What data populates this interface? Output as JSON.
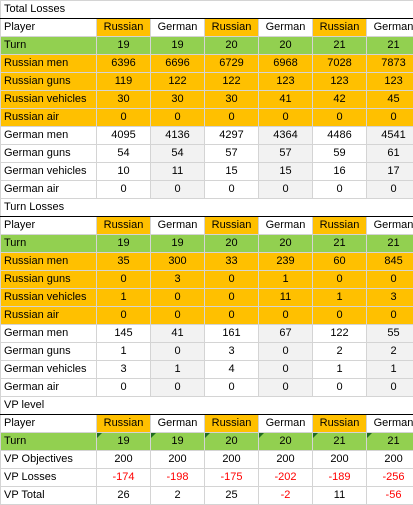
{
  "total_losses": {
    "title": "Total Losses",
    "player_label": "Player",
    "players": [
      "Russian",
      "German",
      "Russian",
      "German",
      "Russian",
      "German"
    ],
    "turn": {
      "label": "Turn",
      "values": [
        "19",
        "19",
        "20",
        "20",
        "21",
        "21"
      ]
    },
    "russian_rows": [
      {
        "label": "Russian men",
        "values": [
          "6396",
          "6696",
          "6729",
          "6968",
          "7028",
          "7873"
        ]
      },
      {
        "label": "Russian guns",
        "values": [
          "119",
          "122",
          "122",
          "123",
          "123",
          "123"
        ]
      },
      {
        "label": "Russian vehicles",
        "values": [
          "30",
          "30",
          "30",
          "41",
          "42",
          "45"
        ]
      },
      {
        "label": "Russian air",
        "values": [
          "0",
          "0",
          "0",
          "0",
          "0",
          "0"
        ]
      }
    ],
    "german_rows": [
      {
        "label": "German men",
        "values": [
          "4095",
          "4136",
          "4297",
          "4364",
          "4486",
          "4541"
        ]
      },
      {
        "label": "German guns",
        "values": [
          "54",
          "54",
          "57",
          "57",
          "59",
          "61"
        ]
      },
      {
        "label": "German vehicles",
        "values": [
          "10",
          "11",
          "15",
          "15",
          "16",
          "17"
        ]
      },
      {
        "label": "German air",
        "values": [
          "0",
          "0",
          "0",
          "0",
          "0",
          "0"
        ]
      }
    ]
  },
  "turn_losses": {
    "title": "Turn Losses",
    "player_label": "Player",
    "players": [
      "Russian",
      "German",
      "Russian",
      "German",
      "Russian",
      "German"
    ],
    "turn": {
      "label": "Turn",
      "values": [
        "19",
        "19",
        "20",
        "20",
        "21",
        "21"
      ]
    },
    "russian_rows": [
      {
        "label": "Russian men",
        "values": [
          "35",
          "300",
          "33",
          "239",
          "60",
          "845"
        ]
      },
      {
        "label": "Russian guns",
        "values": [
          "0",
          "3",
          "0",
          "1",
          "0",
          "0"
        ]
      },
      {
        "label": "Russian vehicles",
        "values": [
          "1",
          "0",
          "0",
          "11",
          "1",
          "3"
        ]
      },
      {
        "label": "Russian air",
        "values": [
          "0",
          "0",
          "0",
          "0",
          "0",
          "0"
        ]
      }
    ],
    "german_rows": [
      {
        "label": "German men",
        "values": [
          "145",
          "41",
          "161",
          "67",
          "122",
          "55"
        ]
      },
      {
        "label": "German guns",
        "values": [
          "1",
          "0",
          "3",
          "0",
          "2",
          "2"
        ]
      },
      {
        "label": "German vehicles",
        "values": [
          "3",
          "1",
          "4",
          "0",
          "1",
          "1"
        ]
      },
      {
        "label": "German air",
        "values": [
          "0",
          "0",
          "0",
          "0",
          "0",
          "0"
        ]
      }
    ]
  },
  "vp_level": {
    "title": "VP level",
    "player_label": "Player",
    "players": [
      "Russian",
      "German",
      "Russian",
      "German",
      "Russian",
      "German"
    ],
    "turn": {
      "label": "Turn",
      "values": [
        "19",
        "19",
        "20",
        "20",
        "21",
        "21"
      ]
    },
    "rows": [
      {
        "label": "VP Objectives",
        "values": [
          "200",
          "200",
          "200",
          "200",
          "200",
          "200"
        ],
        "negative": [
          false,
          false,
          false,
          false,
          false,
          false
        ]
      },
      {
        "label": "VP Losses",
        "values": [
          "-174",
          "-198",
          "-175",
          "-202",
          "-189",
          "-256"
        ],
        "negative": [
          true,
          true,
          true,
          true,
          true,
          true
        ]
      },
      {
        "label": "VP Total",
        "values": [
          "26",
          "2",
          "25",
          "-2",
          "11",
          "-56"
        ],
        "negative": [
          false,
          false,
          false,
          true,
          false,
          true
        ]
      }
    ]
  },
  "colors": {
    "russian": "#ffc000",
    "turn": "#92d050",
    "negative": "#ff0000",
    "german_shade": "#f2f2f2"
  }
}
